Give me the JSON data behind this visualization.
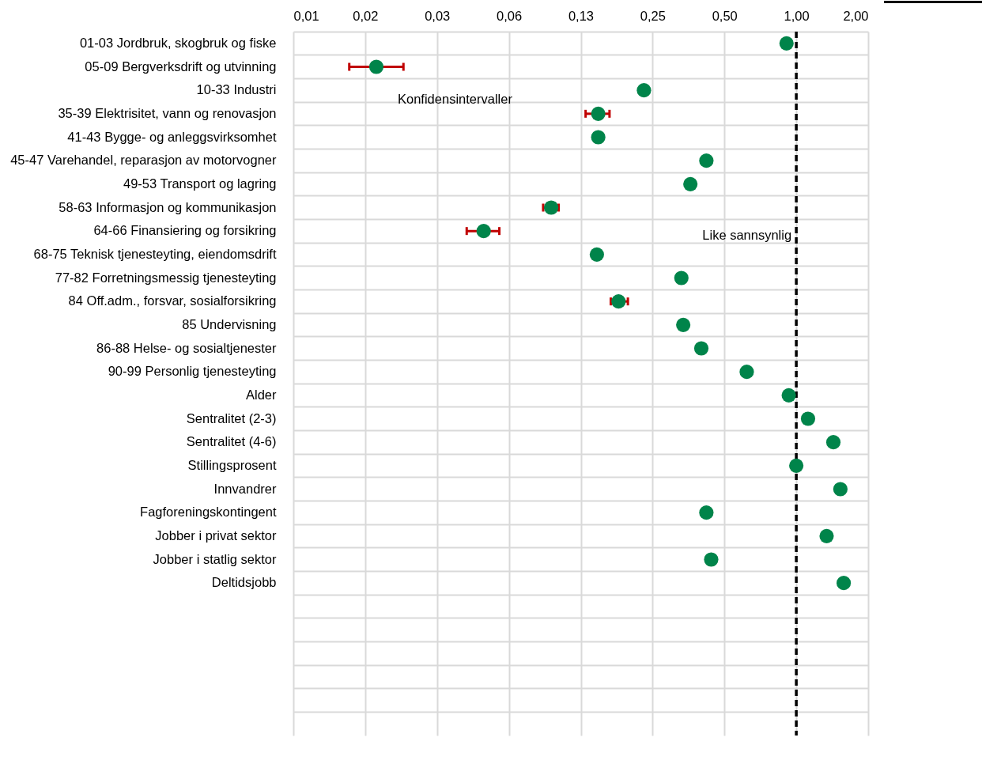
{
  "chart_data": {
    "type": "scatter",
    "orientation": "horizontal",
    "log": "x",
    "grid": true,
    "marker": "circle",
    "categories": [
      "01-03 Jordbruk, skogbruk og fiske",
      "05-09 Bergverksdrift og utvinning",
      "10-33 Industri",
      "35-39 Elektrisitet, vann og renovasjon",
      "41-43 Bygge- og anleggsvirksomhet",
      "45-47 Varehandel, reparasjon av motorvogner",
      "49-53 Transport og lagring",
      "58-63 Informasjon og kommunikasjon",
      "64-66 Finansiering og forsikring",
      "68-75 Teknisk tjenesteyting, eiendomsdrift",
      "77-82 Forretningsmessig tjenesteyting",
      "84 Off.adm., forsvar, sosialforsikring",
      "85 Undervisning",
      "86-88 Helse- og sosialtjenester",
      "90-99 Personlig tjenesteyting",
      "Alder",
      "Sentralitet (2-3)",
      "Sentralitet (4-6)",
      "Stillingsprosent",
      "Innvandrer",
      "Fagforeningskontingent",
      "Jobber i privat sektor",
      "Jobber i statlig sektor",
      "Deltidsjobb",
      null,
      null,
      null,
      null,
      null,
      null
    ],
    "series": [
      {
        "color": "#00844a",
        "values": [
          0.91,
          0.0174,
          0.23,
          0.148,
          0.148,
          0.42,
          0.36,
          0.094,
          0.049,
          0.146,
          0.33,
          0.18,
          0.336,
          0.4,
          0.62,
          0.93,
          1.12,
          1.43,
          1.0,
          1.53,
          0.42,
          1.34,
          0.44,
          1.58,
          null,
          null,
          null,
          null,
          null,
          null
        ],
        "errors": [
          null,
          [
            0.0134,
            0.0226
          ],
          null,
          [
            0.131,
            0.165
          ],
          null,
          null,
          null,
          [
            0.087,
            0.101
          ],
          [
            0.0416,
            0.057
          ],
          null,
          null,
          [
            0.167,
            0.197
          ],
          null,
          null,
          null,
          null,
          null,
          null,
          null,
          null,
          null,
          null,
          null,
          null,
          null,
          null,
          null,
          null,
          null,
          null
        ]
      }
    ],
    "xlim": [
      0.0078125,
      2
    ],
    "xticks": [
      {
        "value": 0.0078125,
        "label": "0,01"
      },
      {
        "value": 0.015625,
        "label": "0,02"
      },
      {
        "value": 0.03125,
        "label": "0,03"
      },
      {
        "value": 0.0625,
        "label": "0,06"
      },
      {
        "value": 0.125,
        "label": "0,13"
      },
      {
        "value": 0.25,
        "label": "0,25"
      },
      {
        "value": 0.5,
        "label": "0,50"
      },
      {
        "value": 1,
        "label": "1,00"
      },
      {
        "value": 2,
        "label": "2,00"
      }
    ],
    "ref_lines": [
      {
        "axis": "x",
        "value": 1,
        "label": "Like sannsynlig",
        "color": "#000000",
        "line_style": "dashed"
      }
    ],
    "annotations": [
      "Konfidensintervaller"
    ]
  }
}
